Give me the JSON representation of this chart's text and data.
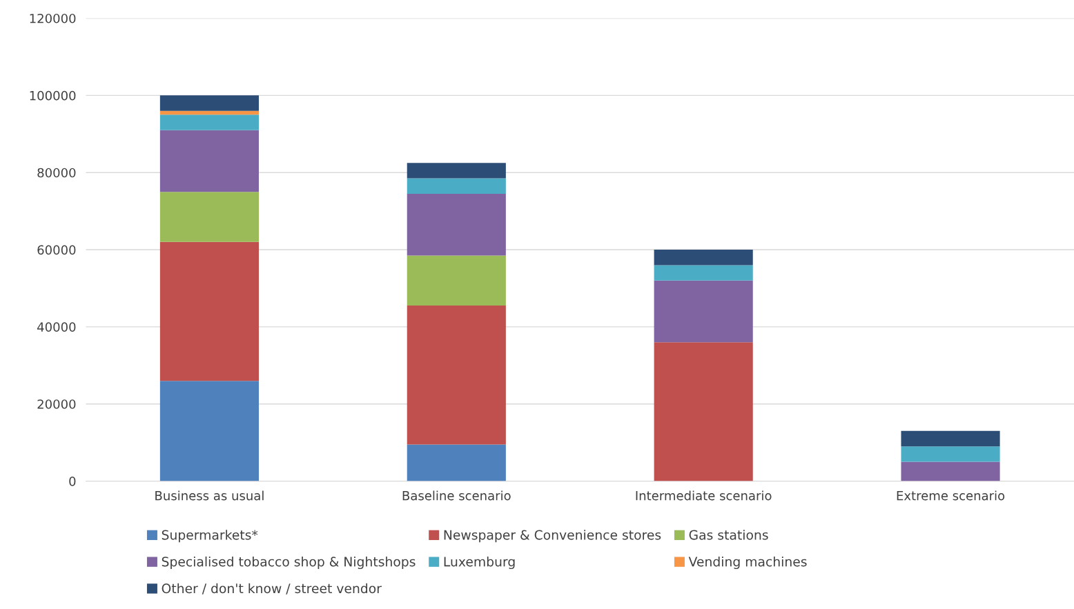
{
  "chart_data": {
    "type": "bar",
    "stacked": true,
    "categories": [
      "Business as usual",
      "Baseline scenario",
      "Intermediate scenario",
      "Extreme scenario"
    ],
    "series": [
      {
        "name": "Supermarkets*",
        "color": "#4f81bd",
        "values": [
          26000,
          9500,
          0,
          0
        ]
      },
      {
        "name": "Newspaper & Convenience stores",
        "color": "#c0504d",
        "values": [
          36000,
          36000,
          36000,
          0
        ]
      },
      {
        "name": "Gas stations",
        "color": "#9bbb59",
        "values": [
          13000,
          13000,
          0,
          0
        ]
      },
      {
        "name": "Specialised tobacco shop & Nightshops",
        "color": "#8064a2",
        "values": [
          16000,
          16000,
          16000,
          5000
        ]
      },
      {
        "name": "Luxemburg",
        "color": "#4bacc6",
        "values": [
          4000,
          4000,
          4000,
          4000
        ]
      },
      {
        "name": "Vending machines",
        "color": "#f79646",
        "values": [
          1000,
          0,
          0,
          0
        ]
      },
      {
        "name": "Other / don't know / street vendor",
        "color": "#2c4d75",
        "values": [
          4000,
          4000,
          4000,
          4000
        ]
      }
    ],
    "ylim": [
      0,
      120000
    ],
    "yticks": [
      0,
      20000,
      40000,
      60000,
      80000,
      100000,
      120000
    ],
    "grid": "y",
    "legend": "bottom"
  }
}
